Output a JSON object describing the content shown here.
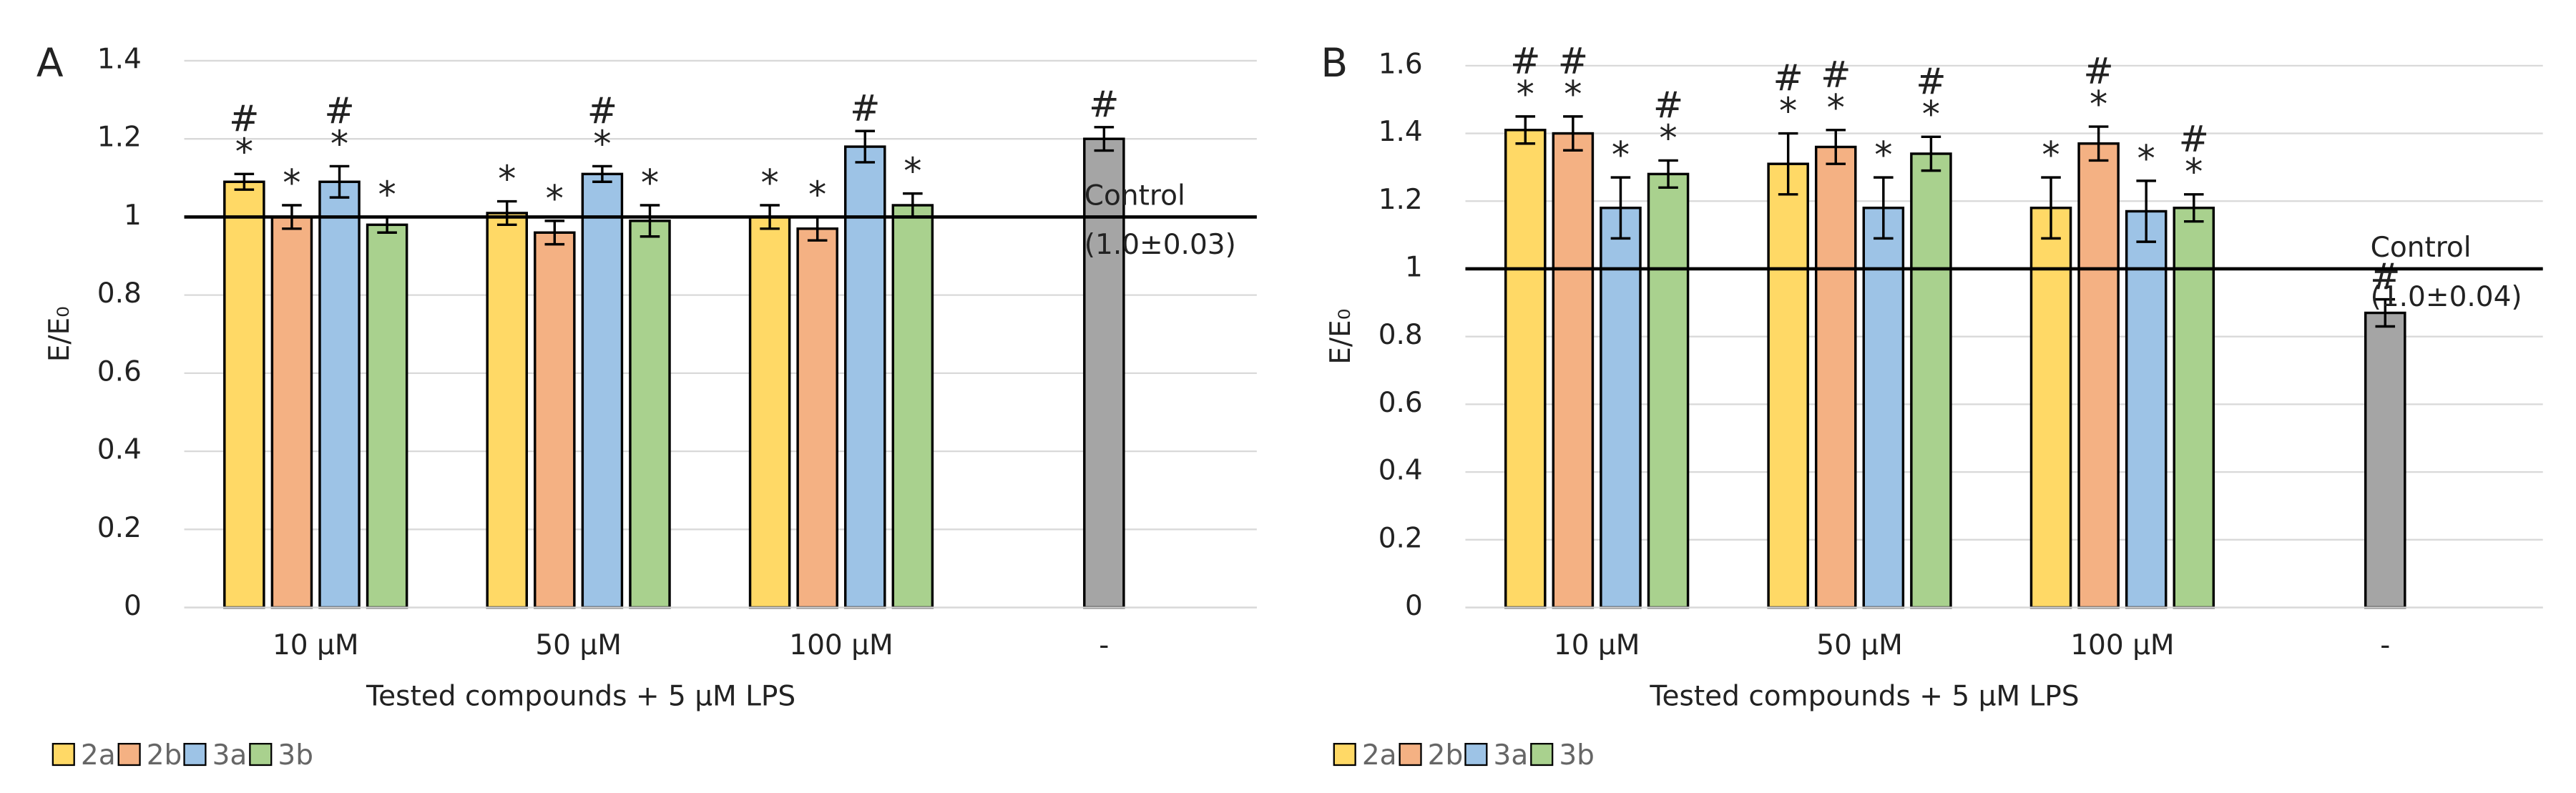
{
  "chart_data": [
    {
      "type": "bar",
      "panel": "A",
      "y_label": "E/E₀",
      "x_label": "Tested  compounds + 5 µM LPS",
      "categories": [
        "10 µM",
        "50 µM",
        "100 µM",
        "-"
      ],
      "ylim": [
        0,
        1.4
      ],
      "yticks": [
        0,
        0.2,
        0.4,
        0.6,
        0.8,
        1,
        1.2,
        1.4
      ],
      "grid": true,
      "legend": "bottom-left",
      "reference_line": {
        "value": 1,
        "label": [
          "Control",
          "(1.0±0.03)"
        ]
      },
      "series": [
        {
          "name": "2a",
          "color": "#ffd966",
          "values": [
            1.09,
            1.01,
            1.0,
            null
          ],
          "errors": [
            0.02,
            0.03,
            0.03,
            null
          ],
          "annotations": [
            [
              "#",
              "*"
            ],
            [
              "*"
            ],
            [
              "*"
            ],
            null
          ]
        },
        {
          "name": "2b",
          "color": "#f4b183",
          "values": [
            1.0,
            0.96,
            0.97,
            null
          ],
          "errors": [
            0.03,
            0.03,
            0.03,
            null
          ],
          "annotations": [
            [
              "*"
            ],
            [
              "*"
            ],
            [
              "*"
            ],
            null
          ]
        },
        {
          "name": "3a",
          "color": "#9dc3e6",
          "values": [
            1.09,
            1.11,
            1.18,
            null
          ],
          "errors": [
            0.04,
            0.02,
            0.04,
            null
          ],
          "annotations": [
            [
              "#",
              "*"
            ],
            [
              "#",
              "*"
            ],
            [
              "#"
            ],
            null
          ]
        },
        {
          "name": "3b",
          "color": "#a9d18e",
          "values": [
            0.98,
            0.99,
            1.03,
            null
          ],
          "errors": [
            0.02,
            0.04,
            0.03,
            null
          ],
          "annotations": [
            [
              "*"
            ],
            [
              "*"
            ],
            [
              "*"
            ],
            null
          ]
        },
        {
          "color": "#a5a5a5",
          "values": [
            null,
            null,
            null,
            1.2
          ],
          "errors": [
            null,
            null,
            null,
            0.03
          ],
          "annotations": [
            null,
            null,
            null,
            [
              "#"
            ]
          ]
        }
      ]
    },
    {
      "type": "bar",
      "panel": "B",
      "y_label": "E/E₀",
      "x_label": "Tested  compounds + 5 µM LPS",
      "categories": [
        "10 µM",
        "50 µM",
        "100 µM",
        "-"
      ],
      "ylim": [
        0,
        1.6
      ],
      "yticks": [
        0,
        0.2,
        0.4,
        0.6,
        0.8,
        1,
        1.2,
        1.4,
        1.6
      ],
      "grid": true,
      "legend": "bottom-left",
      "reference_line": {
        "value": 1,
        "label": [
          "Control",
          "(1.0±0.04)"
        ]
      },
      "series": [
        {
          "name": "2a",
          "color": "#ffd966",
          "values": [
            1.41,
            1.31,
            1.18,
            null
          ],
          "errors": [
            0.04,
            0.09,
            0.09,
            null
          ],
          "annotations": [
            [
              "#",
              "*"
            ],
            [
              "#",
              "*"
            ],
            [
              "*"
            ],
            null
          ]
        },
        {
          "name": "2b",
          "color": "#f4b183",
          "values": [
            1.4,
            1.36,
            1.37,
            null
          ],
          "errors": [
            0.05,
            0.05,
            0.05,
            null
          ],
          "annotations": [
            [
              "#",
              "*"
            ],
            [
              "#",
              "*"
            ],
            [
              "#",
              "*"
            ],
            null
          ]
        },
        {
          "name": "3a",
          "color": "#9dc3e6",
          "values": [
            1.18,
            1.18,
            1.17,
            null
          ],
          "errors": [
            0.09,
            0.09,
            0.09,
            null
          ],
          "annotations": [
            [
              "*"
            ],
            [
              "*"
            ],
            [
              "*"
            ],
            null
          ]
        },
        {
          "name": "3b",
          "color": "#a9d18e",
          "values": [
            1.28,
            1.34,
            1.18,
            null
          ],
          "errors": [
            0.04,
            0.05,
            0.04,
            null
          ],
          "annotations": [
            [
              "#",
              "*"
            ],
            [
              "#",
              "*"
            ],
            [
              "#",
              "*"
            ],
            null
          ]
        },
        {
          "color": "#a5a5a5",
          "values": [
            null,
            null,
            null,
            0.87
          ],
          "errors": [
            null,
            null,
            null,
            0.04
          ],
          "annotations": [
            null,
            null,
            null,
            [
              "#"
            ]
          ]
        }
      ]
    }
  ]
}
